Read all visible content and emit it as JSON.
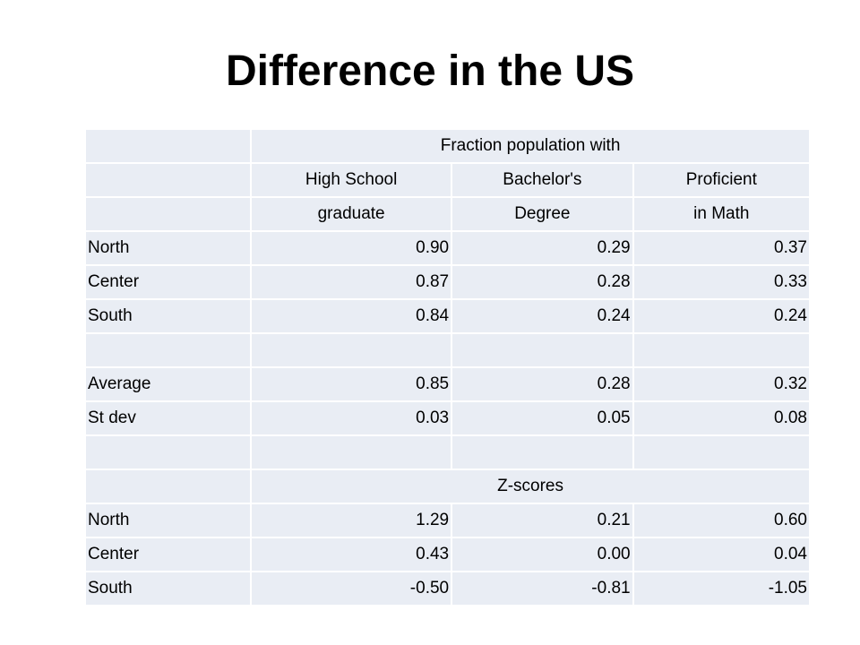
{
  "slide": {
    "title": "Difference in the US"
  },
  "table": {
    "group_header_1": "Fraction population with",
    "columns_line1": [
      "High School",
      "Bachelor's",
      "Proficient"
    ],
    "columns_line2": [
      "graduate",
      "Degree",
      "in Math"
    ],
    "fractions": [
      {
        "region": "North",
        "values": [
          "0.90",
          "0.29",
          "0.37"
        ]
      },
      {
        "region": "Center",
        "values": [
          "0.87",
          "0.28",
          "0.33"
        ]
      },
      {
        "region": "South",
        "values": [
          "0.84",
          "0.24",
          "0.24"
        ]
      }
    ],
    "summary": [
      {
        "label": "Average",
        "values": [
          "0.85",
          "0.28",
          "0.32"
        ]
      },
      {
        "label": "St dev",
        "values": [
          "0.03",
          "0.05",
          "0.08"
        ]
      }
    ],
    "group_header_2": "Z-scores",
    "zscores": [
      {
        "region": "North",
        "values": [
          "1.29",
          "0.21",
          "0.60"
        ]
      },
      {
        "region": "Center",
        "values": [
          "0.43",
          "0.00",
          "0.04"
        ]
      },
      {
        "region": "South",
        "values": [
          "-0.50",
          "-0.81",
          "-1.05"
        ]
      }
    ]
  }
}
